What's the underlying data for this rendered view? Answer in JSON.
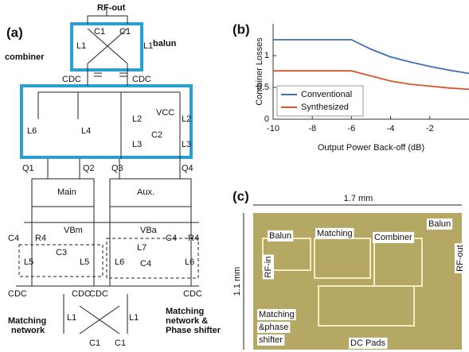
{
  "panel_a": {
    "label": "(a)",
    "texts": [
      "RF-out",
      "balun",
      "combiner",
      "C1",
      "C1",
      "L1",
      "L1",
      "CDC",
      "CDC",
      "L6",
      "L4",
      "VCC",
      "L2",
      "L2",
      "L3",
      "L3",
      "C2",
      "Q1",
      "Q2",
      "Q3",
      "Q4",
      "Main",
      "Aux.",
      "VBm",
      "VBa",
      "C4",
      "R4",
      "C4",
      "R4",
      "L5",
      "C3",
      "L5",
      "L6",
      "L7",
      "C4",
      "L6",
      "CDC",
      "CDC",
      "CDC",
      "CDC",
      "Matching",
      "network",
      "Matching",
      "network &",
      "Phase shifter",
      "L1",
      "L1",
      "C1",
      "C1"
    ]
  },
  "chart_data": {
    "type": "line",
    "label": "(b)",
    "x_label": "Output Power Back-off (dB)",
    "y_label": "Combiner Losses",
    "x": [
      -10,
      -8,
      -6,
      -5,
      -4,
      -3,
      -2,
      -1,
      0
    ],
    "series": [
      {
        "name": "Conventional",
        "color": "#3b6fb6",
        "values": [
          1.25,
          1.25,
          1.25,
          1.1,
          0.98,
          0.9,
          0.83,
          0.77,
          0.72
        ]
      },
      {
        "name": "Synthesized",
        "color": "#d4572a",
        "values": [
          0.76,
          0.76,
          0.76,
          0.68,
          0.6,
          0.55,
          0.52,
          0.49,
          0.47
        ]
      }
    ],
    "xlim": [
      -10,
      0
    ],
    "xticks": [
      -10,
      -8,
      -6,
      -4,
      -2
    ],
    "ylim": [
      0,
      1.5
    ],
    "yticks": [
      0,
      0.5,
      1
    ],
    "legend": "lower-left",
    "grid": false
  },
  "panel_c": {
    "label": "(c)",
    "width": "1.7 mm",
    "height": "1.1 mm",
    "blocks": [
      "Balun",
      "Matching",
      "Combiner",
      "Balun",
      "RF-in",
      "RF-out",
      "Matching",
      "&phase",
      "shifter",
      "DC Pads"
    ]
  }
}
